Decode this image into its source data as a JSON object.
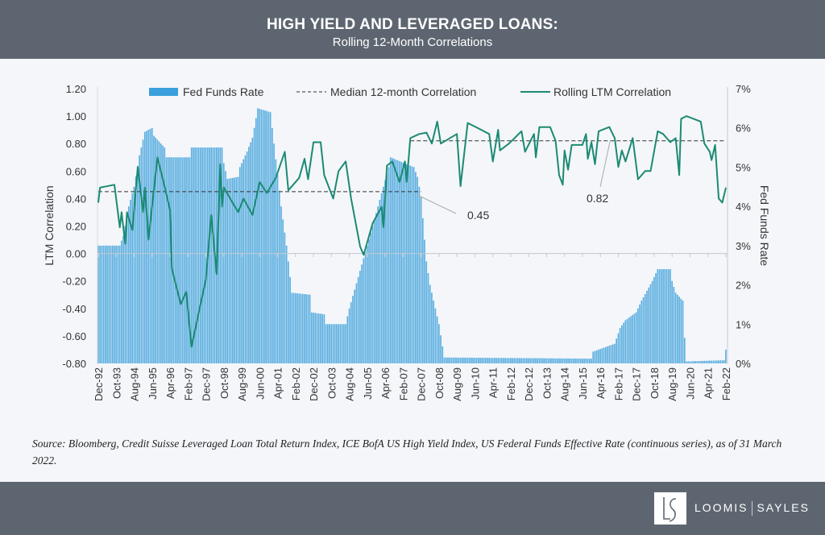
{
  "header": {
    "title": "HIGH YIELD AND LEVERAGED LOANS:",
    "subtitle": "Rolling 12-Month Correlations"
  },
  "source": "Source: Bloomberg, Credit Suisse Leveraged Loan Total Return Index, ICE BofA US High Yield Index, US Federal Funds Effective Rate (continuous series), as of 31 March 2022.",
  "logo": {
    "left": "LOOMIS",
    "right": "SAYLES",
    "mark": "LS"
  },
  "colors": {
    "header": "#5d6670",
    "bars": "#5aaee0",
    "line": "#1c8a72",
    "median": "#333333"
  },
  "chart_data": {
    "type": "bar+line",
    "ylabel": "LTM Correlation",
    "y2label": "Fed Funds Rate",
    "ylim": [
      -0.8,
      1.2
    ],
    "y2lim": [
      0,
      7
    ],
    "yticks": [
      "1.20",
      "1.00",
      "0.80",
      "0.60",
      "0.40",
      "0.20",
      "0.00",
      "-0.20",
      "-0.40",
      "-0.60",
      "-0.80"
    ],
    "y2ticks": [
      "7%",
      "6%",
      "5%",
      "4%",
      "3%",
      "2%",
      "1%",
      "0%"
    ],
    "xticks": [
      "Dec-92",
      "Oct-93",
      "Aug-94",
      "Jun-95",
      "Apr-96",
      "Feb-97",
      "Dec-97",
      "Oct-98",
      "Aug-99",
      "Jun-00",
      "Apr-01",
      "Feb-02",
      "Dec-02",
      "Oct-03",
      "Aug-04",
      "Jun-05",
      "Apr-06",
      "Feb-07",
      "Dec-07",
      "Oct-08",
      "Aug-09",
      "Jun-10",
      "Apr-11",
      "Feb-12",
      "Dec-12",
      "Oct-13",
      "Aug-14",
      "Jun-15",
      "Apr-16",
      "Feb-17",
      "Dec-17",
      "Oct-18",
      "Aug-19",
      "Jun-20",
      "Apr-21",
      "Feb-22"
    ],
    "legend": [
      "Fed Funds Rate",
      "Median 12-month Correlation",
      "Rolling LTM Correlation"
    ],
    "legend_position": "top",
    "grid": false,
    "fed_funds_rate": [
      [
        "1992-12",
        3.0
      ],
      [
        "1993-12",
        3.0
      ],
      [
        "1994-02",
        3.25
      ],
      [
        "1994-05",
        4.0
      ],
      [
        "1994-08",
        4.5
      ],
      [
        "1994-11",
        5.3
      ],
      [
        "1995-02",
        5.9
      ],
      [
        "1995-06",
        6.0
      ],
      [
        "1995-07",
        5.8
      ],
      [
        "1996-01",
        5.5
      ],
      [
        "1996-02",
        5.25
      ],
      [
        "1997-03",
        5.25
      ],
      [
        "1997-04",
        5.5
      ],
      [
        "1998-09",
        5.5
      ],
      [
        "1998-10",
        5.1
      ],
      [
        "1998-12",
        4.7
      ],
      [
        "1999-06",
        4.75
      ],
      [
        "1999-07",
        5.0
      ],
      [
        "1999-11",
        5.4
      ],
      [
        "2000-02",
        5.75
      ],
      [
        "2000-05",
        6.5
      ],
      [
        "2000-12",
        6.4
      ],
      [
        "2001-01",
        6.0
      ],
      [
        "2001-06",
        4.0
      ],
      [
        "2001-09",
        3.0
      ],
      [
        "2001-12",
        1.8
      ],
      [
        "2002-10",
        1.75
      ],
      [
        "2002-11",
        1.3
      ],
      [
        "2003-06",
        1.25
      ],
      [
        "2003-07",
        1.0
      ],
      [
        "2004-06",
        1.0
      ],
      [
        "2004-08",
        1.4
      ],
      [
        "2005-06",
        3.0
      ],
      [
        "2006-06",
        5.0
      ],
      [
        "2006-07",
        5.25
      ],
      [
        "2007-08",
        5.0
      ],
      [
        "2007-10",
        4.75
      ],
      [
        "2007-12",
        4.25
      ],
      [
        "2008-03",
        2.6
      ],
      [
        "2008-05",
        2.0
      ],
      [
        "2008-10",
        1.0
      ],
      [
        "2009-01",
        0.15
      ],
      [
        "2015-11",
        0.12
      ],
      [
        "2015-12",
        0.3
      ],
      [
        "2016-12",
        0.5
      ],
      [
        "2017-03",
        0.9
      ],
      [
        "2017-06",
        1.1
      ],
      [
        "2017-12",
        1.3
      ],
      [
        "2018-03",
        1.6
      ],
      [
        "2018-09",
        2.1
      ],
      [
        "2018-12",
        2.4
      ],
      [
        "2019-07",
        2.4
      ],
      [
        "2019-08",
        2.1
      ],
      [
        "2019-10",
        1.8
      ],
      [
        "2020-02",
        1.6
      ],
      [
        "2020-03",
        0.65
      ],
      [
        "2020-04",
        0.05
      ],
      [
        "2022-01",
        0.08
      ],
      [
        "2022-02",
        0.35
      ]
    ],
    "rolling_ltm_correlation": [
      [
        "1992-12",
        0.37
      ],
      [
        "1993-01",
        0.48
      ],
      [
        "1993-09",
        0.5
      ],
      [
        "1993-12",
        0.19
      ],
      [
        "1994-01",
        0.3
      ],
      [
        "1994-03",
        0.07
      ],
      [
        "1994-04",
        0.3
      ],
      [
        "1994-07",
        0.17
      ],
      [
        "1994-10",
        0.63
      ],
      [
        "1995-01",
        0.3
      ],
      [
        "1995-02",
        0.48
      ],
      [
        "1995-04",
        0.1
      ],
      [
        "1995-09",
        0.7
      ],
      [
        "1995-12",
        0.54
      ],
      [
        "1996-04",
        0.32
      ],
      [
        "1996-05",
        -0.11
      ],
      [
        "1996-10",
        -0.37
      ],
      [
        "1997-01",
        -0.28
      ],
      [
        "1997-04",
        -0.68
      ],
      [
        "1997-09",
        -0.37
      ],
      [
        "1997-12",
        -0.19
      ],
      [
        "1998-03",
        0.28
      ],
      [
        "1998-06",
        -0.15
      ],
      [
        "1998-08",
        0.65
      ],
      [
        "1998-09",
        0.34
      ],
      [
        "1998-10",
        0.48
      ],
      [
        "1999-06",
        0.3
      ],
      [
        "1999-09",
        0.4
      ],
      [
        "2000-02",
        0.28
      ],
      [
        "2000-06",
        0.52
      ],
      [
        "2000-10",
        0.44
      ],
      [
        "2001-03",
        0.55
      ],
      [
        "2001-08",
        0.74
      ],
      [
        "2001-10",
        0.46
      ],
      [
        "2002-04",
        0.55
      ],
      [
        "2002-07",
        0.69
      ],
      [
        "2002-09",
        0.54
      ],
      [
        "2002-12",
        0.81
      ],
      [
        "2003-04",
        0.81
      ],
      [
        "2003-06",
        0.57
      ],
      [
        "2003-11",
        0.4
      ],
      [
        "2004-02",
        0.6
      ],
      [
        "2004-06",
        0.67
      ],
      [
        "2004-09",
        0.4
      ],
      [
        "2005-02",
        0.05
      ],
      [
        "2005-04",
        -0.01
      ],
      [
        "2005-09",
        0.22
      ],
      [
        "2006-02",
        0.34
      ],
      [
        "2006-03",
        0.19
      ],
      [
        "2006-05",
        0.64
      ],
      [
        "2006-08",
        0.67
      ],
      [
        "2006-12",
        0.52
      ],
      [
        "2007-03",
        0.67
      ],
      [
        "2007-04",
        0.52
      ],
      [
        "2007-06",
        0.84
      ],
      [
        "2007-11",
        0.87
      ],
      [
        "2008-03",
        0.88
      ],
      [
        "2008-06",
        0.8
      ],
      [
        "2008-09",
        0.96
      ],
      [
        "2008-11",
        0.8
      ],
      [
        "2009-08",
        0.87
      ],
      [
        "2009-10",
        0.49
      ],
      [
        "2010-02",
        0.95
      ],
      [
        "2010-08",
        0.91
      ],
      [
        "2011-02",
        0.87
      ],
      [
        "2011-04",
        0.67
      ],
      [
        "2011-07",
        0.9
      ],
      [
        "2011-08",
        0.75
      ],
      [
        "2012-01",
        0.8
      ],
      [
        "2012-08",
        0.89
      ],
      [
        "2012-10",
        0.74
      ],
      [
        "2013-03",
        0.87
      ],
      [
        "2013-04",
        0.7
      ],
      [
        "2013-06",
        0.92
      ],
      [
        "2013-12",
        0.92
      ],
      [
        "2014-03",
        0.82
      ],
      [
        "2014-05",
        0.57
      ],
      [
        "2014-07",
        0.5
      ],
      [
        "2014-08",
        0.75
      ],
      [
        "2014-10",
        0.61
      ],
      [
        "2014-12",
        0.79
      ],
      [
        "2015-06",
        0.79
      ],
      [
        "2015-08",
        0.87
      ],
      [
        "2015-09",
        0.69
      ],
      [
        "2015-11",
        0.81
      ],
      [
        "2016-01",
        0.65
      ],
      [
        "2016-03",
        0.89
      ],
      [
        "2016-09",
        0.92
      ],
      [
        "2016-12",
        0.84
      ],
      [
        "2017-02",
        0.63
      ],
      [
        "2017-04",
        0.75
      ],
      [
        "2017-06",
        0.67
      ],
      [
        "2017-10",
        0.84
      ],
      [
        "2018-01",
        0.54
      ],
      [
        "2018-05",
        0.6
      ],
      [
        "2018-08",
        0.6
      ],
      [
        "2018-12",
        0.89
      ],
      [
        "2019-03",
        0.87
      ],
      [
        "2019-07",
        0.81
      ],
      [
        "2019-10",
        0.84
      ],
      [
        "2019-12",
        0.57
      ],
      [
        "2020-01",
        0.98
      ],
      [
        "2020-04",
        1.0
      ],
      [
        "2020-12",
        0.96
      ],
      [
        "2021-02",
        0.8
      ],
      [
        "2021-05",
        0.74
      ],
      [
        "2021-06",
        0.68
      ],
      [
        "2021-08",
        0.79
      ],
      [
        "2021-10",
        0.4
      ],
      [
        "2021-12",
        0.37
      ],
      [
        "2022-02",
        0.48
      ]
    ],
    "median_correlation": [
      {
        "label": "0.45",
        "value": 0.45,
        "from": "1992-12",
        "to": "2007-12"
      },
      {
        "label": "0.82",
        "value": 0.82,
        "from": "2007-06",
        "to": "2022-02"
      }
    ]
  }
}
